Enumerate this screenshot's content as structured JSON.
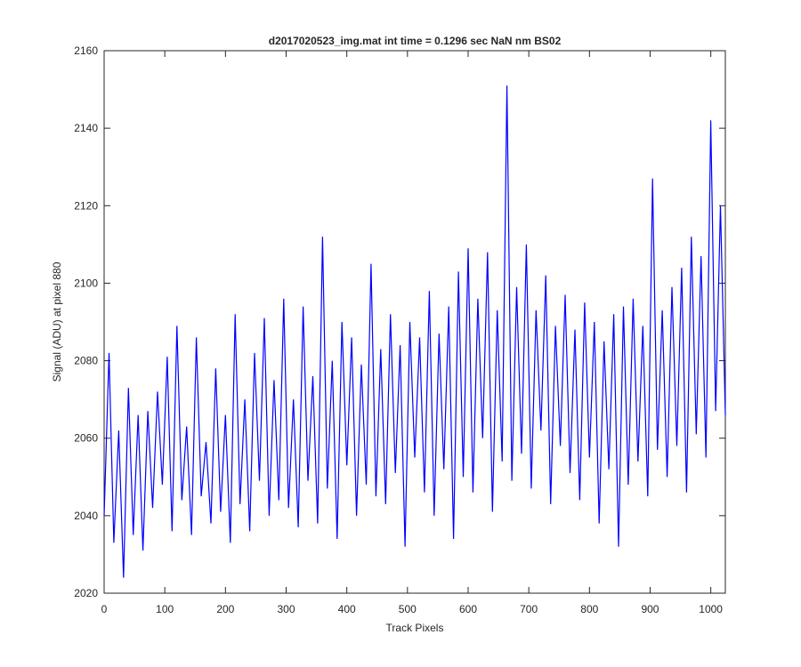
{
  "chart_data": {
    "type": "line",
    "title": "d2017020523_img.mat int time = 0.1296 sec  NaN nm BS02",
    "xlabel": "Track Pixels",
    "ylabel": "Signal (ADU) at pixel 880",
    "xlim": [
      0,
      1024
    ],
    "ylim": [
      2020,
      2160
    ],
    "xticks": [
      0,
      100,
      200,
      300,
      400,
      500,
      600,
      700,
      800,
      900,
      1000
    ],
    "yticks": [
      2020,
      2040,
      2060,
      2080,
      2100,
      2120,
      2140,
      2160
    ],
    "grid": false,
    "legend": "none",
    "series": [
      {
        "color": "#0000ff",
        "x": [
          0,
          8,
          16,
          24,
          32,
          40,
          48,
          56,
          64,
          72,
          80,
          88,
          96,
          104,
          112,
          120,
          128,
          136,
          144,
          152,
          160,
          168,
          176,
          184,
          192,
          200,
          208,
          216,
          224,
          232,
          240,
          248,
          256,
          264,
          272,
          280,
          288,
          296,
          304,
          312,
          320,
          328,
          336,
          344,
          352,
          360,
          368,
          376,
          384,
          392,
          400,
          408,
          416,
          424,
          432,
          440,
          448,
          456,
          464,
          472,
          480,
          488,
          496,
          504,
          512,
          520,
          528,
          536,
          544,
          552,
          560,
          568,
          576,
          584,
          592,
          600,
          608,
          616,
          624,
          632,
          640,
          648,
          656,
          664,
          672,
          680,
          688,
          696,
          704,
          712,
          720,
          728,
          736,
          744,
          752,
          760,
          768,
          776,
          784,
          792,
          800,
          808,
          816,
          824,
          832,
          840,
          848,
          856,
          864,
          872,
          880,
          888,
          896,
          904,
          912,
          920,
          928,
          936,
          944,
          952,
          960,
          968,
          976,
          984,
          992,
          1000,
          1008,
          1016,
          1024
        ],
        "y": [
          2040,
          2082,
          2033,
          2062,
          2024,
          2073,
          2035,
          2066,
          2031,
          2067,
          2042,
          2072,
          2048,
          2081,
          2036,
          2089,
          2044,
          2063,
          2035,
          2086,
          2045,
          2059,
          2038,
          2078,
          2041,
          2066,
          2033,
          2092,
          2043,
          2070,
          2036,
          2082,
          2049,
          2091,
          2040,
          2075,
          2044,
          2096,
          2042,
          2070,
          2037,
          2094,
          2049,
          2076,
          2038,
          2112,
          2047,
          2080,
          2034,
          2090,
          2053,
          2086,
          2040,
          2079,
          2048,
          2105,
          2045,
          2083,
          2043,
          2092,
          2051,
          2084,
          2032,
          2090,
          2055,
          2086,
          2046,
          2098,
          2040,
          2087,
          2052,
          2094,
          2034,
          2103,
          2050,
          2109,
          2046,
          2096,
          2060,
          2108,
          2041,
          2093,
          2054,
          2151,
          2049,
          2099,
          2056,
          2110,
          2047,
          2093,
          2062,
          2102,
          2043,
          2089,
          2058,
          2097,
          2051,
          2088,
          2044,
          2095,
          2055,
          2090,
          2038,
          2085,
          2052,
          2092,
          2032,
          2094,
          2048,
          2096,
          2054,
          2089,
          2045,
          2127,
          2057,
          2093,
          2050,
          2099,
          2058,
          2104,
          2046,
          2112,
          2061,
          2107,
          2055,
          2142,
          2067,
          2120,
          2066
        ]
      }
    ]
  }
}
